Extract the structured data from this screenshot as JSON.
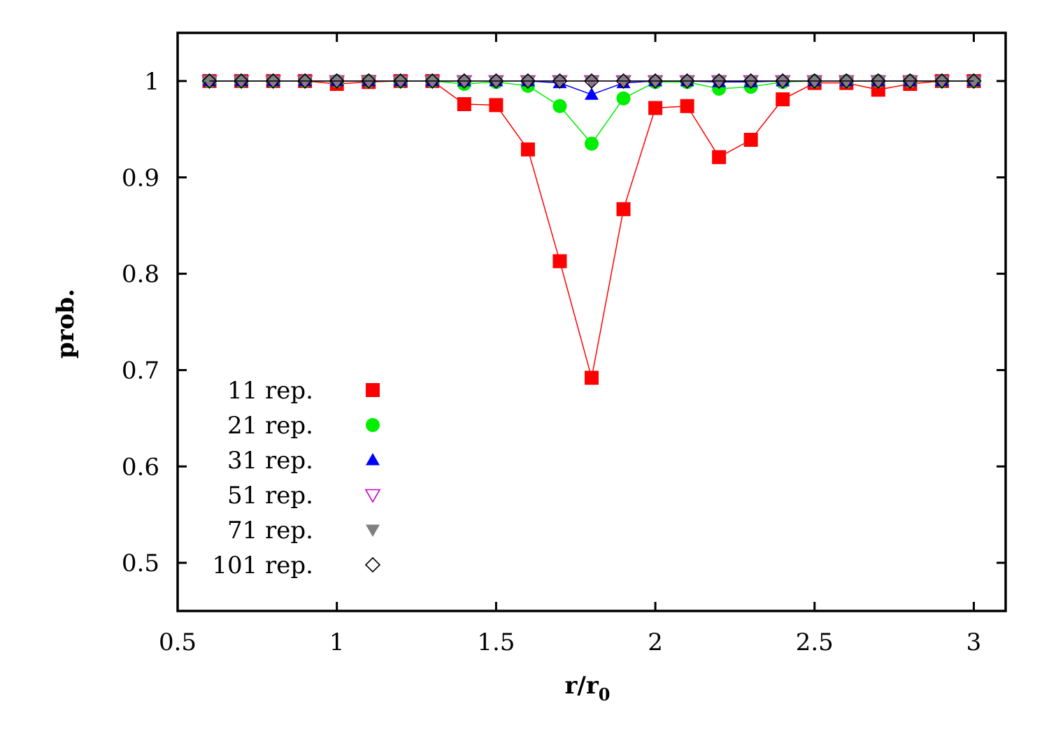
{
  "chart_data": {
    "type": "line",
    "title": "",
    "xlabel": "r/r",
    "xlabel_sub": "0",
    "ylabel": "prob.",
    "xlim": [
      0.5,
      3.1
    ],
    "ylim": [
      0.45,
      1.05
    ],
    "xticks": [
      0.5,
      1,
      1.5,
      2,
      2.5,
      3
    ],
    "xtick_labels": [
      "0.5",
      "1",
      "1.5",
      "2",
      "2.5",
      "3"
    ],
    "yticks": [
      0.5,
      0.6,
      0.7,
      0.8,
      0.9,
      1
    ],
    "ytick_labels": [
      "0.5",
      "0.6",
      "0.7",
      "0.8",
      "0.9",
      "1"
    ],
    "grid": false,
    "legend_position": "bottom-left",
    "x": [
      0.6,
      0.7,
      0.8,
      0.9,
      1.0,
      1.1,
      1.2,
      1.3,
      1.4,
      1.5,
      1.6,
      1.7,
      1.8,
      1.9,
      2.0,
      2.1,
      2.2,
      2.3,
      2.4,
      2.5,
      2.6,
      2.7,
      2.8,
      2.9,
      3.0
    ],
    "series": [
      {
        "name": "11 rep.",
        "marker": "square",
        "color": "#ff0000",
        "values": [
          1.0,
          1.0,
          1.0,
          1.0,
          0.997,
          0.999,
          1.0,
          1.0,
          0.976,
          0.975,
          0.929,
          0.813,
          0.692,
          0.867,
          0.972,
          0.974,
          0.921,
          0.939,
          0.981,
          0.998,
          0.998,
          0.991,
          0.997,
          1.0,
          1.0
        ]
      },
      {
        "name": "21 rep.",
        "marker": "circle",
        "color": "#00ee00",
        "values": [
          1.0,
          1.0,
          1.0,
          1.0,
          1.0,
          1.0,
          1.0,
          1.0,
          0.997,
          0.999,
          0.995,
          0.974,
          0.935,
          0.982,
          0.999,
          0.999,
          0.992,
          0.994,
          0.999,
          1.0,
          1.0,
          1.0,
          1.0,
          1.0,
          1.0
        ]
      },
      {
        "name": "31 rep.",
        "marker": "triangle-up",
        "color": "#0000ff",
        "values": [
          1.0,
          1.0,
          1.0,
          1.0,
          1.0,
          1.0,
          1.0,
          1.0,
          1.0,
          1.0,
          1.0,
          0.998,
          0.986,
          0.998,
          1.0,
          1.0,
          0.999,
          0.999,
          1.0,
          1.0,
          1.0,
          1.0,
          1.0,
          1.0,
          1.0
        ]
      },
      {
        "name": "51 rep.",
        "marker": "triangle-down-open",
        "color": "#cc00cc",
        "values": [
          1.0,
          1.0,
          1.0,
          1.0,
          1.0,
          1.0,
          1.0,
          1.0,
          1.0,
          1.0,
          1.0,
          1.0,
          1.0,
          1.0,
          1.0,
          1.0,
          1.0,
          1.0,
          1.0,
          1.0,
          1.0,
          1.0,
          1.0,
          1.0,
          1.0
        ]
      },
      {
        "name": "71 rep.",
        "marker": "triangle-down",
        "color": "#808080",
        "values": [
          1.0,
          1.0,
          1.0,
          1.0,
          1.0,
          1.0,
          1.0,
          1.0,
          1.0,
          1.0,
          1.0,
          1.0,
          1.0,
          1.0,
          1.0,
          1.0,
          1.0,
          1.0,
          1.0,
          1.0,
          1.0,
          1.0,
          1.0,
          1.0,
          1.0
        ]
      },
      {
        "name": "101 rep.",
        "marker": "diamond-open",
        "color": "#000000",
        "values": [
          1.0,
          1.0,
          1.0,
          1.0,
          1.0,
          1.0,
          1.0,
          1.0,
          1.0,
          1.0,
          1.0,
          1.0,
          1.0,
          1.0,
          1.0,
          1.0,
          1.0,
          1.0,
          1.0,
          1.0,
          1.0,
          1.0,
          1.0,
          1.0,
          1.0
        ]
      }
    ]
  }
}
